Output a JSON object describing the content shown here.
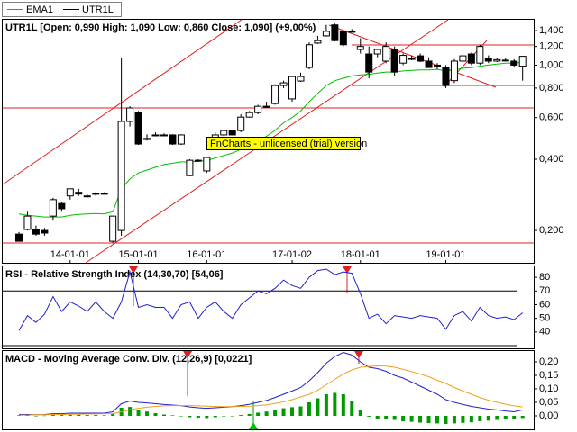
{
  "chart_data": [
    {
      "type": "candlestick",
      "name": "UTR1L",
      "title": "UTR1L [Open: 0,990  High: 1,090  Low: 0,860  Close: 1,090] (+9,00%)",
      "color": "#000000",
      "open": [
        0.193,
        0.202,
        0.202,
        0.2,
        0.23,
        0.26,
        0.28,
        0.29,
        0.28,
        0.285,
        0.287,
        0.18,
        0.2,
        0.578,
        0.63,
        0.49,
        0.507,
        0.507,
        0.507,
        0.464,
        0.341,
        0.396,
        0.357,
        0.485,
        0.507,
        0.529,
        0.529,
        0.603,
        0.63,
        0.67,
        0.688,
        0.82,
        0.72,
        0.857,
        0.977,
        1.24,
        1.33,
        1.48,
        1.39,
        1.39,
        1.165,
        1.115,
        1.115,
        1.04,
        1.165,
        1.02,
        1.067,
        1.095,
        1.04,
        1.0,
        0.977,
        0.86,
        1.04,
        1.115,
        1.02,
        1.067,
        1.04,
        1.05,
        1.04,
        0.99
      ],
      "high": [
        0.197,
        0.24,
        0.21,
        0.205,
        0.275,
        0.265,
        0.3,
        0.3,
        0.285,
        0.29,
        0.29,
        0.23,
        1.07,
        0.67,
        0.64,
        0.51,
        0.52,
        0.515,
        0.51,
        0.51,
        0.4,
        0.4,
        0.41,
        0.52,
        0.53,
        0.53,
        0.62,
        0.64,
        0.68,
        0.7,
        0.83,
        0.86,
        0.9,
        0.93,
        1.25,
        1.33,
        1.48,
        1.5,
        1.4,
        1.42,
        1.3,
        1.2,
        1.16,
        1.25,
        1.2,
        1.12,
        1.1,
        1.12,
        1.08,
        1.02,
        1.0,
        1.06,
        1.12,
        1.13,
        1.22,
        1.1,
        1.07,
        1.07,
        1.06,
        1.09
      ],
      "low": [
        0.18,
        0.2,
        0.19,
        0.19,
        0.22,
        0.24,
        0.27,
        0.28,
        0.275,
        0.28,
        0.285,
        0.177,
        0.19,
        0.55,
        0.46,
        0.48,
        0.5,
        0.5,
        0.46,
        0.46,
        0.34,
        0.39,
        0.35,
        0.48,
        0.5,
        0.505,
        0.52,
        0.6,
        0.62,
        0.66,
        0.68,
        0.8,
        0.7,
        0.85,
        0.96,
        1.23,
        1.32,
        1.26,
        1.2,
        1.38,
        1.12,
        0.88,
        1.08,
        1.02,
        0.9,
        1.0,
        1.05,
        1.03,
        0.98,
        0.96,
        0.8,
        0.84,
        1.02,
        1.0,
        1.0,
        1.02,
        1.03,
        1.04,
        0.98,
        0.86
      ],
      "close": [
        0.18,
        0.23,
        0.193,
        0.195,
        0.27,
        0.247,
        0.3,
        0.285,
        0.279,
        0.287,
        0.287,
        0.23,
        0.578,
        0.659,
        0.464,
        0.485,
        0.505,
        0.507,
        0.464,
        0.507,
        0.396,
        0.396,
        0.407,
        0.507,
        0.529,
        0.507,
        0.603,
        0.63,
        0.67,
        0.67,
        0.82,
        0.842,
        0.895,
        0.895,
        1.22,
        1.27,
        1.39,
        1.27,
        1.22,
        1.39,
        1.2,
        0.935,
        1.165,
        1.2,
        0.935,
        1.1,
        1.067,
        1.04,
        0.977,
        1.0,
        0.82,
        1.04,
        1.095,
        1.02,
        1.2,
        1.04,
        1.055,
        1.05,
        1.0,
        1.09
      ],
      "series": [
        {
          "name": "EMA1",
          "color": "#00c000",
          "values": [
            0.235,
            0.232,
            0.23,
            0.228,
            0.228,
            0.228,
            0.232,
            0.234,
            0.235,
            0.236,
            0.235,
            0.24,
            0.3,
            0.33,
            0.35,
            0.36,
            0.37,
            0.38,
            0.385,
            0.39,
            0.39,
            0.392,
            0.395,
            0.405,
            0.415,
            0.425,
            0.44,
            0.46,
            0.48,
            0.5,
            0.53,
            0.57,
            0.6,
            0.64,
            0.7,
            0.76,
            0.82,
            0.86,
            0.88,
            0.9,
            0.91,
            0.915,
            0.925,
            0.935,
            0.935,
            0.945,
            0.95,
            0.955,
            0.955,
            0.96,
            0.945,
            0.955,
            0.97,
            0.975,
            0.99,
            1.0,
            1.01,
            1.02,
            1.02,
            1.03
          ]
        }
      ],
      "log_scale": true,
      "ylim": [
        0.146,
        1.556
      ],
      "yticks": [
        {
          "value": 1.4,
          "label": "1,400"
        },
        {
          "value": 1.2,
          "label": "1,200"
        },
        {
          "value": 1.0,
          "label": "1,000"
        },
        {
          "value": 0.8,
          "label": "0,800"
        },
        {
          "value": 0.6,
          "label": "0,600"
        },
        {
          "value": 0.4,
          "label": "0,400"
        },
        {
          "value": 0.2,
          "label": "0,200"
        }
      ],
      "xlim": [
        -1.9,
        60.3
      ],
      "xticks": [
        {
          "value": 6,
          "label": "14-01-01"
        },
        {
          "value": 14,
          "label": "15-01-01"
        },
        {
          "value": 22,
          "label": "16-01-01"
        },
        {
          "value": 32,
          "label": "17-01-02"
        },
        {
          "value": 40,
          "label": "18-01-01"
        },
        {
          "value": 50,
          "label": "19-01-01"
        }
      ],
      "annotation": "FnCharts - unlicensed (trial) version"
    },
    {
      "type": "line",
      "title": "RSI - Relative Strength Index (14,30,70) [54,06]",
      "series": [
        {
          "color": "#2020d0",
          "values": [
            41,
            52,
            47,
            53,
            66,
            55,
            62,
            59,
            55,
            62,
            55,
            50,
            62,
            84,
            58,
            60,
            58,
            58,
            50,
            60,
            62,
            50,
            58,
            62,
            55,
            50,
            60,
            65,
            70,
            68,
            72,
            78,
            74,
            72,
            80,
            85,
            86,
            82,
            84,
            83,
            68,
            50,
            53,
            46,
            52,
            51,
            50,
            52,
            51,
            50,
            42,
            52,
            55,
            48,
            58,
            52,
            50,
            51,
            49,
            54.06
          ]
        }
      ],
      "levels": [
        30,
        70
      ],
      "ylim": [
        28,
        88
      ],
      "yticks": [
        80,
        70,
        60,
        50,
        40
      ]
    },
    {
      "type": "macd",
      "title": "MACD - Moving Average Conv. Div. (12,26,9) [0,0221]",
      "series": [
        {
          "color": "#2020d0",
          "values": [
            0.005,
            0.005,
            0.004,
            0.005,
            0.008,
            0.008,
            0.01,
            0.01,
            0.01,
            0.01,
            0.01,
            0.015,
            0.045,
            0.055,
            0.05,
            0.048,
            0.045,
            0.042,
            0.04,
            0.038,
            0.033,
            0.03,
            0.028,
            0.03,
            0.032,
            0.034,
            0.038,
            0.043,
            0.05,
            0.057,
            0.068,
            0.08,
            0.092,
            0.105,
            0.13,
            0.16,
            0.195,
            0.22,
            0.235,
            0.225,
            0.2,
            0.18,
            0.175,
            0.165,
            0.15,
            0.14,
            0.125,
            0.11,
            0.095,
            0.08,
            0.06,
            0.05,
            0.042,
            0.035,
            0.03,
            0.025,
            0.022,
            0.018,
            0.015,
            0.0221
          ]
        },
        {
          "color": "#f0a020",
          "values": [
            0.003,
            0.003,
            0.004,
            0.004,
            0.005,
            0.005,
            0.006,
            0.006,
            0.007,
            0.007,
            0.008,
            0.008,
            0.015,
            0.022,
            0.028,
            0.032,
            0.035,
            0.037,
            0.038,
            0.038,
            0.038,
            0.037,
            0.036,
            0.035,
            0.034,
            0.034,
            0.035,
            0.036,
            0.038,
            0.041,
            0.046,
            0.052,
            0.06,
            0.07,
            0.08,
            0.095,
            0.115,
            0.135,
            0.155,
            0.17,
            0.18,
            0.183,
            0.185,
            0.184,
            0.18,
            0.172,
            0.164,
            0.155,
            0.145,
            0.132,
            0.12,
            0.105,
            0.092,
            0.08,
            0.068,
            0.058,
            0.05,
            0.043,
            0.037,
            0.033
          ]
        }
      ],
      "histogram": {
        "color": "#009900",
        "values": [
          0.002,
          0.002,
          0,
          0.001,
          0.003,
          0.003,
          0.004,
          0.004,
          0.003,
          0.003,
          0.002,
          0.007,
          0.03,
          0.033,
          0.022,
          0.016,
          0.01,
          0.005,
          0.002,
          0,
          -0.005,
          -0.007,
          -0.008,
          -0.005,
          -0.002,
          0,
          0.003,
          0.007,
          0.012,
          0.016,
          0.022,
          0.028,
          0.032,
          0.035,
          0.05,
          0.065,
          0.08,
          0.085,
          0.08,
          0.055,
          0.02,
          -0.003,
          -0.01,
          -0.01,
          -0.015,
          -0.02,
          -0.022,
          -0.025,
          -0.027,
          -0.028,
          -0.03,
          -0.028,
          -0.026,
          -0.024,
          -0.02,
          -0.018,
          -0.015,
          -0.013,
          -0.011,
          -0.008
        ]
      },
      "ylim": [
        -0.05,
        0.24
      ],
      "yticks": [
        {
          "value": 0.2,
          "label": "0,20"
        },
        {
          "value": 0.15,
          "label": "0,15"
        },
        {
          "value": 0.1,
          "label": "0,10"
        },
        {
          "value": 0.05,
          "label": "0,05"
        },
        {
          "value": 0,
          "label": "0,00"
        }
      ]
    }
  ]
}
